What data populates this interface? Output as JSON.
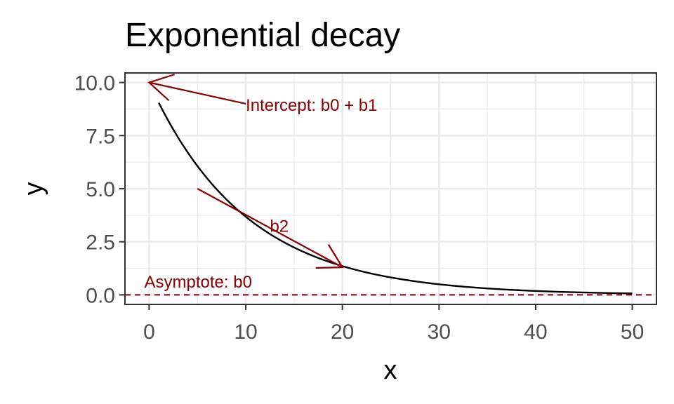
{
  "chart_data": {
    "type": "line",
    "title": "Exponential decay",
    "xlabel": "x",
    "ylabel": "y",
    "xlim": [
      -2.5,
      52.5
    ],
    "ylim": [
      -0.45,
      10.45
    ],
    "grid": true,
    "x_ticks": [
      0,
      10,
      20,
      30,
      40,
      50
    ],
    "y_ticks": [
      0.0,
      2.5,
      5.0,
      7.5,
      10.0
    ],
    "x_tick_labels": [
      "0",
      "10",
      "20",
      "30",
      "40",
      "50"
    ],
    "y_tick_labels": [
      "0.0",
      "2.5",
      "5.0",
      "7.5",
      "10.0"
    ],
    "x_minor_ticks": [
      5,
      15,
      25,
      35,
      45
    ],
    "y_minor_ticks": [
      1.25,
      3.75,
      6.25,
      8.75
    ],
    "series": [
      {
        "color": "#000000",
        "b0": 0,
        "b1": 10,
        "b2": 0.1,
        "x": [
          1,
          50
        ]
      }
    ],
    "annotations": [
      {
        "kind": "arrow",
        "label": "Intercept: b0 + b1",
        "color": "#8b0000",
        "from": [
          10,
          9.0
        ],
        "to": [
          0,
          10
        ],
        "text_at": [
          10,
          9.0
        ],
        "text_anchor": "start"
      },
      {
        "kind": "arrow",
        "label": "b2",
        "color": "#8b0000",
        "from": [
          5,
          5.0
        ],
        "to": [
          20,
          1.3
        ],
        "text_at": [
          12.5,
          3.3
        ],
        "text_anchor": "start"
      },
      {
        "kind": "hline",
        "label": "Asymptote: b0",
        "color": "#8b0000",
        "y": 0,
        "dashed": true,
        "text_at": [
          -0.5,
          0.35
        ],
        "text_anchor": "start"
      }
    ]
  }
}
